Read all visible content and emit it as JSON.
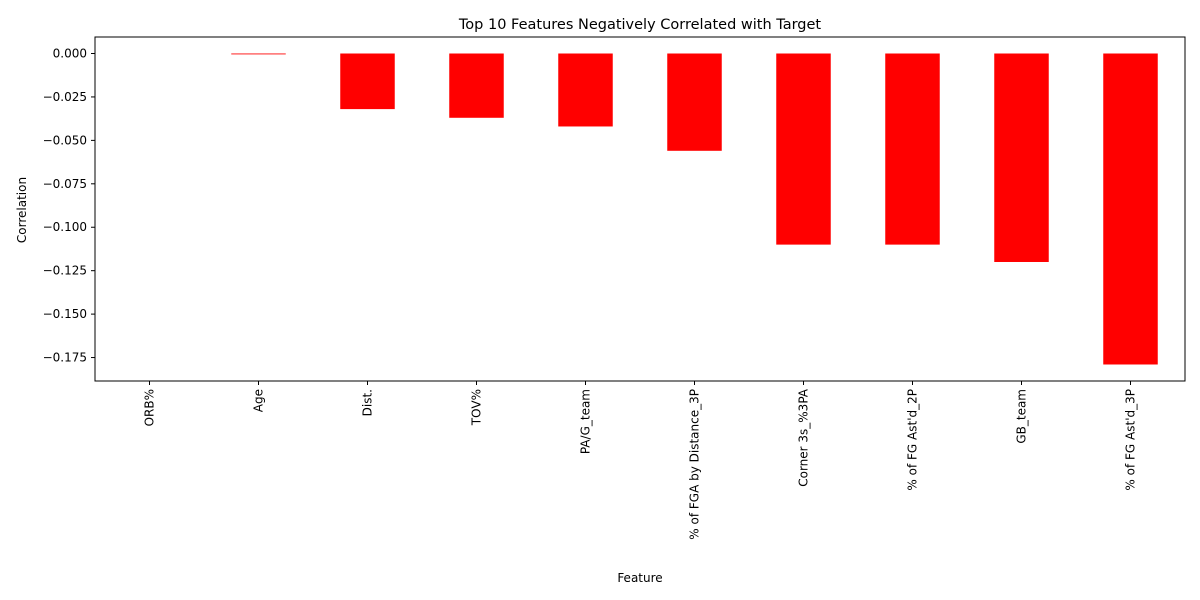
{
  "chart_data": {
    "type": "bar",
    "title": "Top 10 Features Negatively Correlated with Target",
    "xlabel": "Feature",
    "ylabel": "Correlation",
    "categories": [
      "ORB%",
      "Age",
      "Dist.",
      "TOV%",
      "PA/G_team",
      "% of FGA by Distance_3P",
      "Corner 3s_%3PA",
      "% of FG Ast'd_2P",
      "GB_team",
      "% of FG Ast'd_3P"
    ],
    "values": [
      0.0,
      -0.0005,
      -0.032,
      -0.037,
      -0.042,
      -0.056,
      -0.11,
      -0.11,
      -0.12,
      -0.179
    ],
    "ylim": [
      -0.1885,
      0.0095
    ],
    "yticks": [
      0.0,
      -0.025,
      -0.05,
      -0.075,
      -0.1,
      -0.125,
      -0.15,
      -0.175
    ],
    "ytick_labels": [
      "0.000",
      "−0.025",
      "−0.050",
      "−0.075",
      "−0.100",
      "−0.125",
      "−0.150",
      "−0.175"
    ],
    "bar_color": "#ff0000",
    "grid": false,
    "legend": "none"
  }
}
